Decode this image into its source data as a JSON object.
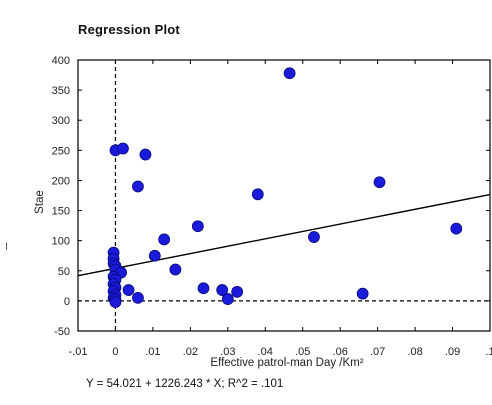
{
  "title": "Regression Plot",
  "equation": "Y = 54.021 + 1226.243 * X; R^2 = .101",
  "stray_mark": "I",
  "colors": {
    "point": "#1a1adb",
    "point_edge": "#0a0a7a",
    "line": "#000000",
    "background": "#ffffff"
  },
  "chart_data": {
    "type": "scatter",
    "title": "Regression Plot",
    "xlabel": "Effective patrol-man Day /Km²",
    "ylabel": "Stae",
    "xlim": [
      -0.01,
      0.1
    ],
    "ylim": [
      -50,
      400
    ],
    "x_ticks": [
      -0.01,
      0,
      0.01,
      0.02,
      0.03,
      0.04,
      0.05,
      0.06,
      0.07,
      0.08,
      0.09,
      0.1
    ],
    "x_tick_labels": [
      "-.01",
      "0",
      ".01",
      ".02",
      ".03",
      ".04",
      ".05",
      ".06",
      ".07",
      ".08",
      ".09",
      ".1"
    ],
    "y_ticks": [
      -50,
      0,
      50,
      100,
      150,
      200,
      250,
      300,
      350,
      400
    ],
    "y_tick_labels": [
      "-50",
      "0",
      "50",
      "100",
      "150",
      "200",
      "250",
      "300",
      "350",
      "400"
    ],
    "grid": false,
    "reference_lines": {
      "x": 0,
      "y": 0,
      "style": "dashed"
    },
    "regression": {
      "intercept": 54.021,
      "slope": 1226.243,
      "r_squared": 0.101
    },
    "points": [
      {
        "x": 0.0,
        "y": 250
      },
      {
        "x": 0.002,
        "y": 253
      },
      {
        "x": 0.008,
        "y": 243
      },
      {
        "x": 0.006,
        "y": 190
      },
      {
        "x": -0.0005,
        "y": 80
      },
      {
        "x": -0.0005,
        "y": 70
      },
      {
        "x": -0.0005,
        "y": 62
      },
      {
        "x": 0.0,
        "y": 58
      },
      {
        "x": 0.0,
        "y": 52
      },
      {
        "x": 0.0015,
        "y": 47
      },
      {
        "x": -0.0005,
        "y": 40
      },
      {
        "x": 0.0,
        "y": 35
      },
      {
        "x": -0.0005,
        "y": 28
      },
      {
        "x": 0.0,
        "y": 22
      },
      {
        "x": -0.0005,
        "y": 16
      },
      {
        "x": 0.0,
        "y": 10
      },
      {
        "x": -0.0005,
        "y": 5
      },
      {
        "x": 0.0,
        "y": 2
      },
      {
        "x": 0.0,
        "y": -2
      },
      {
        "x": 0.0035,
        "y": 18
      },
      {
        "x": 0.006,
        "y": 5
      },
      {
        "x": 0.013,
        "y": 102
      },
      {
        "x": 0.0105,
        "y": 75
      },
      {
        "x": 0.016,
        "y": 52
      },
      {
        "x": 0.022,
        "y": 124
      },
      {
        "x": 0.0235,
        "y": 21
      },
      {
        "x": 0.0285,
        "y": 18
      },
      {
        "x": 0.03,
        "y": 3
      },
      {
        "x": 0.0325,
        "y": 15
      },
      {
        "x": 0.038,
        "y": 177
      },
      {
        "x": 0.0465,
        "y": 378
      },
      {
        "x": 0.053,
        "y": 106
      },
      {
        "x": 0.066,
        "y": 12
      },
      {
        "x": 0.0705,
        "y": 197
      },
      {
        "x": 0.091,
        "y": 120
      }
    ]
  }
}
